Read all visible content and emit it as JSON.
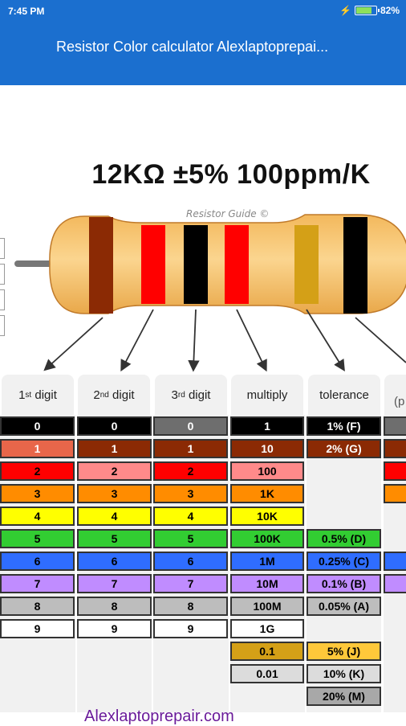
{
  "status_bar": {
    "time": "7:45 PM",
    "battery": "82%",
    "battery_level": 0.82
  },
  "app_bar": {
    "title": "Resistor Color calculator Alexlaptoprepai..."
  },
  "result": {
    "text": "12KΩ ±5% 100ppm/K"
  },
  "diagram": {
    "watermark": "Resistor Guide ©"
  },
  "columns": {
    "digit1": {
      "ord": "1",
      "sup": "st",
      "label": "digit"
    },
    "digit2": {
      "ord": "2",
      "sup": "nd",
      "label": "digit"
    },
    "digit3": {
      "ord": "3",
      "sup": "rd",
      "label": "digit"
    },
    "multiply": {
      "label": "multiply"
    },
    "tolerance": {
      "label": "tolerance"
    },
    "ppm": {
      "label": "(p"
    }
  },
  "digits": [
    "0",
    "1",
    "2",
    "3",
    "4",
    "5",
    "6",
    "7",
    "8",
    "9"
  ],
  "multipliers": [
    "1",
    "10",
    "100",
    "1K",
    "10K",
    "100K",
    "1M",
    "10M",
    "100M",
    "1G",
    "0.1",
    "0.01"
  ],
  "tolerances": {
    "black": "1% (F)",
    "brown": "2% (G)",
    "green": "0.5% (D)",
    "blue": "0.25% (C)",
    "violet": "0.1% (B)",
    "grey": "0.05% (A)",
    "gold": "5% (J)",
    "silver": "10% (K)",
    "none": "20% (M)"
  },
  "colors": {
    "black": "#000000",
    "brown": "#8b2a04",
    "red": "#ff0000",
    "orange": "#ff8c00",
    "yellow": "#ffff00",
    "green": "#32cd32",
    "blue": "#2f6dff",
    "violet": "#c08cff",
    "grey": "#bdbdbd",
    "white": "#ffffff",
    "gold": "#d4a017",
    "silver": "#dcdcdc",
    "none": "#a8a8a8",
    "accent": "#1b6fcf",
    "body": "#f7c97a",
    "footer_text": "#6a1b9a"
  },
  "footer": {
    "text": "Alexlaptoprepair.com"
  }
}
